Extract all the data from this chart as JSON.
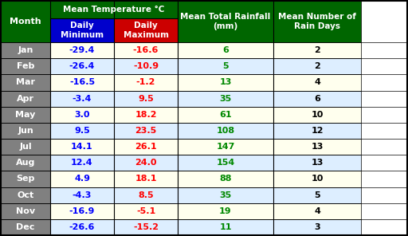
{
  "months": [
    "Jan",
    "Feb",
    "Mar",
    "Apr",
    "May",
    "Jun",
    "Jul",
    "Aug",
    "Sep",
    "Oct",
    "Nov",
    "Dec"
  ],
  "daily_min": [
    -29.4,
    -26.4,
    -16.5,
    -3.4,
    3.0,
    9.5,
    14.1,
    12.4,
    4.9,
    -4.3,
    -16.9,
    -26.6
  ],
  "daily_max": [
    -16.6,
    -10.9,
    -1.2,
    9.5,
    18.2,
    23.5,
    26.1,
    24.0,
    18.1,
    8.5,
    -5.1,
    -15.2
  ],
  "rainfall": [
    6,
    5,
    13,
    35,
    61,
    108,
    147,
    154,
    88,
    35,
    19,
    11
  ],
  "rain_days": [
    2,
    2,
    4,
    6,
    10,
    12,
    13,
    13,
    10,
    5,
    4,
    3
  ],
  "header_bg": "#006600",
  "header_text": "#ffffff",
  "subheader_min_bg": "#0000cc",
  "subheader_max_bg": "#cc0000",
  "subheader_text": "#ffffff",
  "row_bg_odd": "#ffffee",
  "row_bg_even": "#ddeeff",
  "month_col_bg": "#808080",
  "month_col_text": "#ffffff",
  "min_text_color": "#0000ff",
  "max_text_color": "#ff0000",
  "rainfall_text_color": "#008800",
  "rain_days_text_color": "#000000",
  "border_color": "#000000",
  "title_superscript_color": "#ffff00"
}
